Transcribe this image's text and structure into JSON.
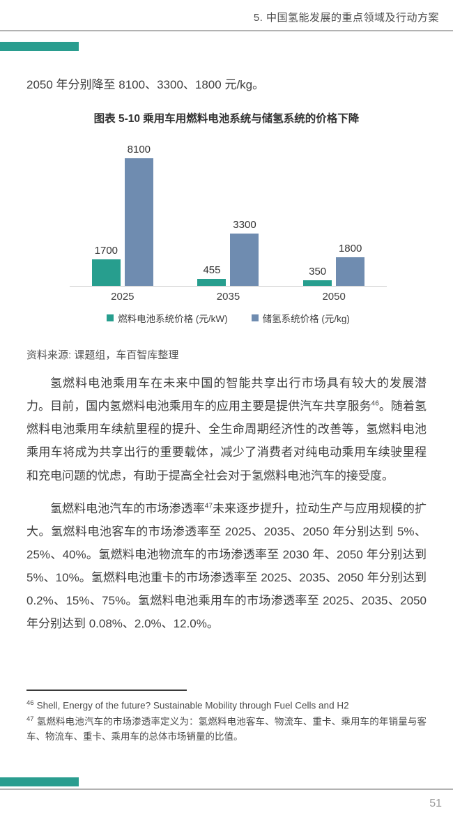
{
  "page": {
    "header": "5. 中国氢能发展的重点领域及行动方案",
    "page_number": "51",
    "accent_color": "#2a9d8f"
  },
  "intro_line": "2050 年分别降至 8100、3300、1800 元/kg。",
  "chart_data": {
    "type": "bar",
    "title": "图表 5-10  乘用车用燃料电池系统与储氢系统的价格下降",
    "categories": [
      "2025",
      "2035",
      "2050"
    ],
    "series": [
      {
        "name": "燃料电池系统价格 (元/kW)",
        "color": "#279e8e",
        "values": [
          1700,
          455,
          350
        ]
      },
      {
        "name": "储氢系统价格 (元/kg)",
        "color": "#6f8cb0",
        "values": [
          8100,
          3300,
          1800
        ]
      }
    ],
    "ylim": [
      0,
      8600
    ],
    "grid": false,
    "data_labels": true,
    "legend_position": "bottom"
  },
  "source_line": "资料来源: 课题组，车百智库整理",
  "paragraphs": [
    {
      "segments": [
        {
          "t": "氢燃料电池乘用车在未来中国的智能共享出行市场具有较大的发展潜力。目前，国内氢燃料电池乘用车的应用主要是提供汽车共享服务",
          "sup": false
        },
        {
          "t": "46",
          "sup": true
        },
        {
          "t": "。随着氢燃料电池乘用车续航里程的提升、全生命周期经济性的改善等，氢燃料电池乘用车将成为共享出行的重要载体，减少了消费者对纯电动乘用车续驶里程和充电问题的忧虑，有助于提高全社会对于氢燃料电池汽车的接受度。",
          "sup": false
        }
      ]
    },
    {
      "segments": [
        {
          "t": "氢燃料电池汽车的市场渗透率",
          "sup": false
        },
        {
          "t": "47",
          "sup": true
        },
        {
          "t": "未来逐步提升，拉动生产与应用规模的扩大。氢燃料电池客车的市场渗透率至 2025、2035、2050 年分别达到 5%、25%、40%。氢燃料电池物流车的市场渗透率至 2030 年、2050 年分别达到 5%、10%。氢燃料电池重卡的市场渗透率至 2025、2035、2050 年分别达到 0.2%、15%、75%。氢燃料电池乘用车的市场渗透率至 2025、2035、2050 年分别达到 0.08%、2.0%、12.0%。",
          "sup": false
        }
      ]
    }
  ],
  "footnotes": [
    {
      "marker": "46",
      "text": "Shell, Energy of the future? Sustainable Mobility through Fuel Cells and H2"
    },
    {
      "marker": "47",
      "text": "氢燃料电池汽车的市场渗透率定义为：氢燃料电池客车、物流车、重卡、乘用车的年销量与客车、物流车、重卡、乘用车的总体市场销量的比值。"
    }
  ]
}
